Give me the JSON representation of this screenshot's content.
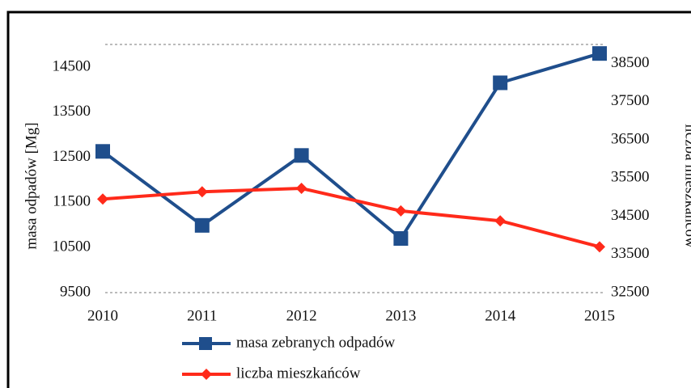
{
  "chart_data": {
    "type": "line",
    "x_categories": null,
    "categories": [
      "2010",
      "2011",
      "2012",
      "2013",
      "2014",
      "2015"
    ],
    "ylabel": "masa odpadów [Mg]",
    "y2label": "liczba mieszkańców",
    "ylim": [
      9500,
      15000
    ],
    "yticks": [
      9500,
      10500,
      11500,
      12500,
      13500,
      14500
    ],
    "y2lim": [
      32500,
      39000
    ],
    "y2ticks": [
      32500,
      33500,
      34500,
      35500,
      36500,
      37500,
      38500
    ],
    "series": [
      {
        "name": "masa zebranych odpadów",
        "color": "#1f4e8c",
        "values": [
          12630,
          10990,
          12540,
          10700,
          14150,
          14800
        ]
      },
      {
        "name": "liczba mieszkańców",
        "color": "#ff2a1a",
        "axis": "y2",
        "values": [
          34950,
          35140,
          35230,
          34640,
          34380,
          33700
        ]
      }
    ]
  }
}
